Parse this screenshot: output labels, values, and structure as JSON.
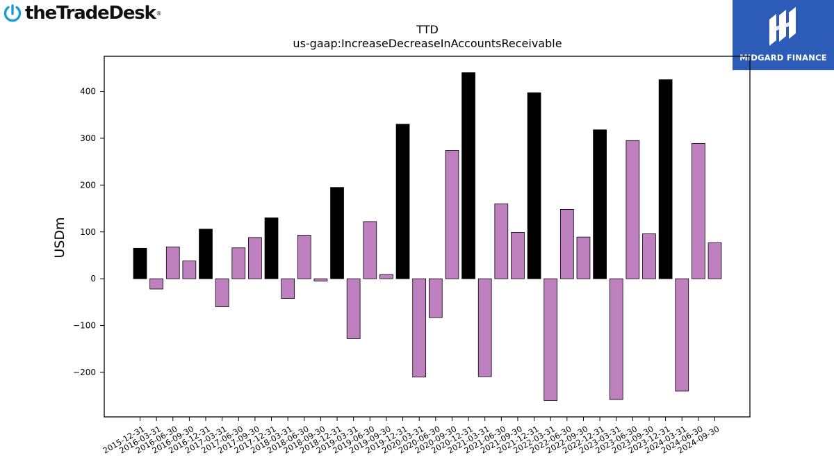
{
  "brand": {
    "name": "theTradeDesk",
    "registered": "®",
    "partner_name": "MIDGARD FINANCE",
    "brand_color": "#1a9bd7",
    "partner_color": "#2d5cb8"
  },
  "chart_data": {
    "type": "bar",
    "title": "TTD",
    "subtitle": "us-gaap:IncreaseDecreaseInAccountsReceivable",
    "xlabel": "",
    "ylabel": "USDm",
    "ylim": [
      -295,
      475
    ],
    "yticks": [
      -200,
      -100,
      0,
      100,
      200,
      300,
      400
    ],
    "ytick_labels": [
      "−200",
      "−100",
      "0",
      "100",
      "200",
      "300",
      "400"
    ],
    "grid": false,
    "highlight_rule": "quarters ending 12-31 drawn in black",
    "colors": {
      "default": "#bf80bf",
      "highlight": "#000000",
      "edge": "#000000"
    },
    "categories": [
      "2015-12-31",
      "2016-03-31",
      "2016-06-30",
      "2016-09-30",
      "2016-12-31",
      "2017-03-31",
      "2017-06-30",
      "2017-09-30",
      "2017-12-31",
      "2018-03-31",
      "2018-06-30",
      "2018-09-30",
      "2018-12-31",
      "2019-03-31",
      "2019-06-30",
      "2019-09-30",
      "2019-12-31",
      "2020-03-31",
      "2020-06-30",
      "2020-09-30",
      "2020-12-31",
      "2021-03-31",
      "2021-06-30",
      "2021-09-30",
      "2021-12-31",
      "2022-03-31",
      "2022-06-30",
      "2022-09-30",
      "2022-12-31",
      "2023-03-31",
      "2023-06-30",
      "2023-09-30",
      "2023-12-31",
      "2024-03-31",
      "2024-06-30",
      "2024-09-30"
    ],
    "values": [
      65,
      -22,
      68,
      38,
      106,
      -60,
      66,
      88,
      130,
      -42,
      93,
      -5,
      195,
      -128,
      122,
      9,
      330,
      -210,
      -83,
      274,
      440,
      -209,
      160,
      99,
      397,
      -260,
      148,
      89,
      318,
      -258,
      295,
      96,
      425,
      -240,
      289,
      77
    ]
  }
}
